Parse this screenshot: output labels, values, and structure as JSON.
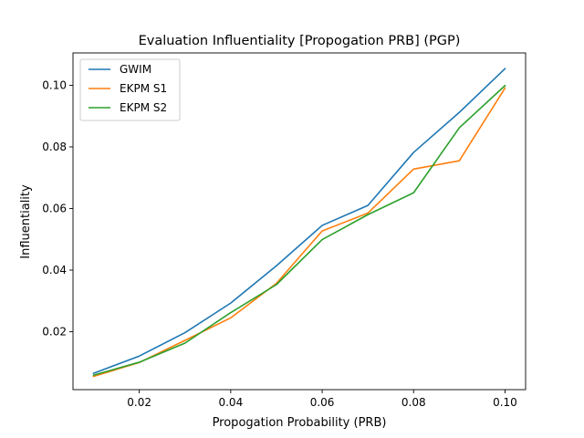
{
  "chart_data": {
    "type": "line",
    "title": "Evaluation Influentiality [Propogation PRB] (PGP)",
    "xlabel": "Propogation Probability (PRB)",
    "ylabel": "Influentiality",
    "x": [
      0.01,
      0.02,
      0.03,
      0.04,
      0.05,
      0.06,
      0.07,
      0.08,
      0.09,
      0.1
    ],
    "xlim": [
      0.0055,
      0.1045
    ],
    "ylim": [
      0.0012,
      0.1105
    ],
    "xticks": [
      0.02,
      0.04,
      0.06,
      0.08,
      0.1
    ],
    "xtick_labels": [
      "0.02",
      "0.04",
      "0.06",
      "0.08",
      "0.10"
    ],
    "yticks": [
      0.02,
      0.04,
      0.06,
      0.08,
      0.1
    ],
    "ytick_labels": [
      "0.02",
      "0.04",
      "0.06",
      "0.08",
      "0.10"
    ],
    "grid": false,
    "legend_position": "top-left",
    "series": [
      {
        "name": "GWIM",
        "color": "#1f77b4",
        "values": [
          0.0065,
          0.0121,
          0.0197,
          0.0293,
          0.0414,
          0.0545,
          0.061,
          0.0782,
          0.0912,
          0.1054
        ]
      },
      {
        "name": "EKPM S1",
        "color": "#ff7f0e",
        "values": [
          0.0055,
          0.01,
          0.0172,
          0.0245,
          0.0357,
          0.0527,
          0.0585,
          0.0728,
          0.0755,
          0.0991
        ]
      },
      {
        "name": "EKPM S2",
        "color": "#2ca02c",
        "values": [
          0.0059,
          0.0101,
          0.0163,
          0.0262,
          0.0353,
          0.0499,
          0.058,
          0.0651,
          0.0862,
          0.0999
        ]
      }
    ]
  }
}
